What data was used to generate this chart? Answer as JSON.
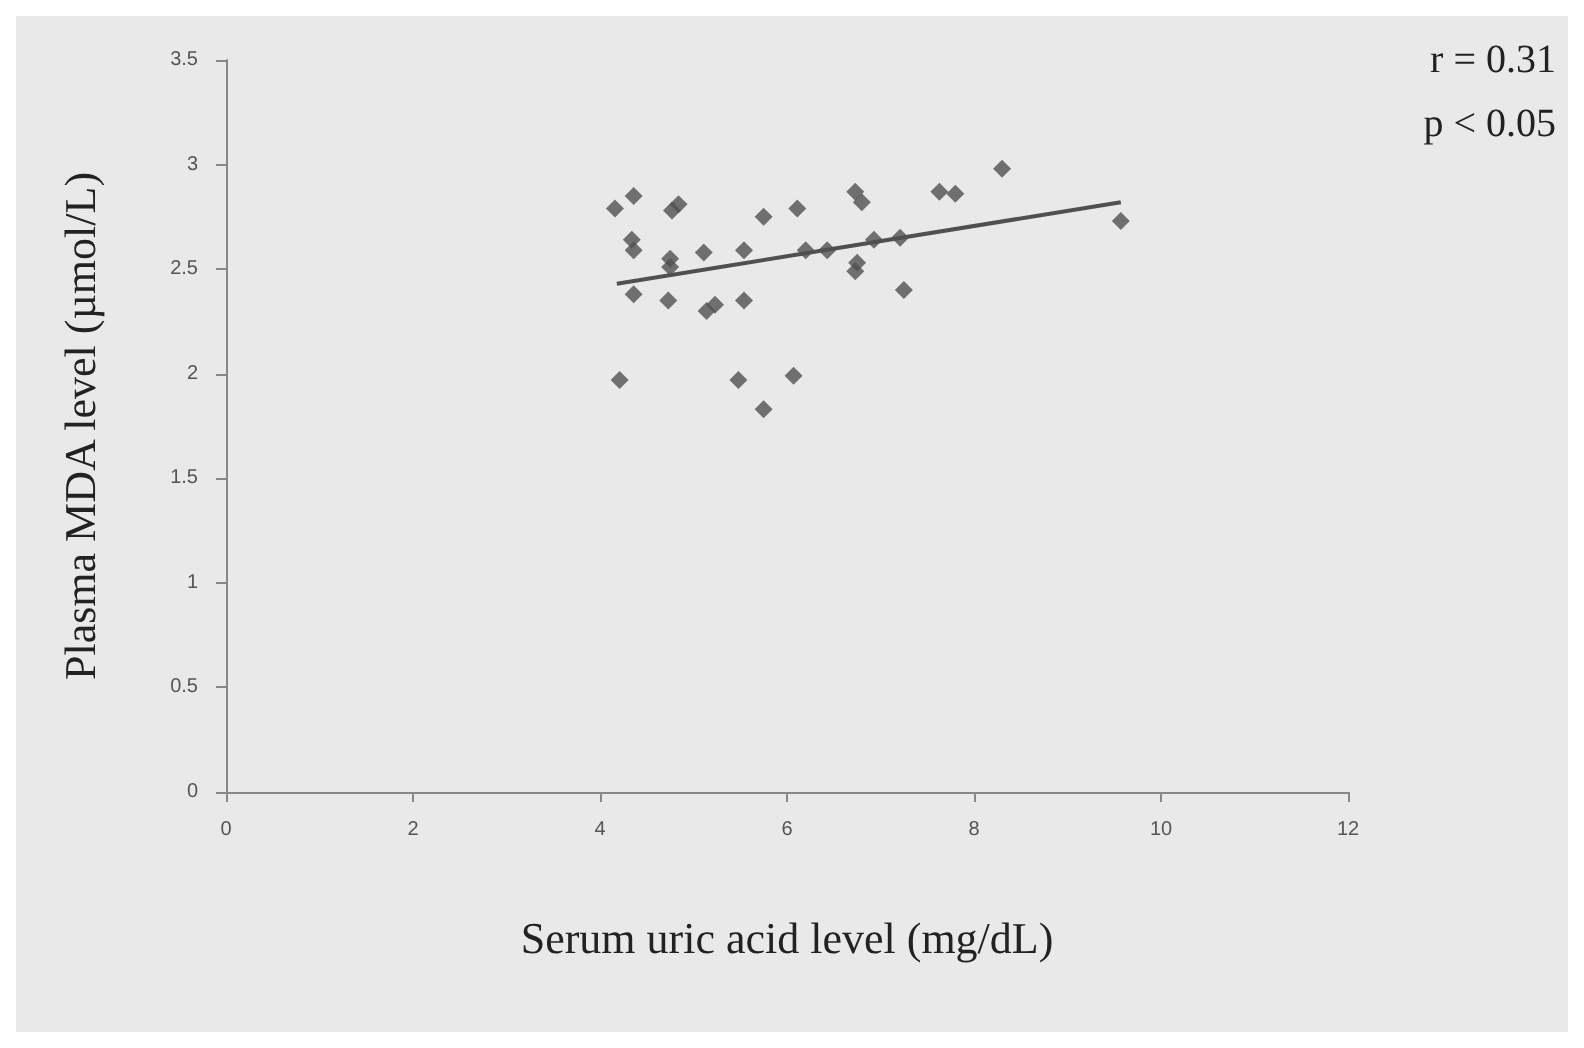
{
  "chart_data": {
    "type": "scatter",
    "xlabel": "Serum uric acid level (mg/dL)",
    "ylabel": "Plasma MDA level (µmol/L)",
    "xlim": [
      0,
      12
    ],
    "xticks": [
      0,
      2,
      4,
      6,
      8,
      10,
      12
    ],
    "ylim": [
      0,
      3.5
    ],
    "yticks": [
      0,
      0.5,
      1,
      1.5,
      2,
      2.5,
      3,
      3.5
    ],
    "grid": false,
    "marker": "diamond",
    "annotations": [
      "r = 0.31",
      "p < 0.05"
    ],
    "series": [
      {
        "color": "#505050",
        "x": [
          4.16,
          4.36,
          4.77,
          4.84,
          4.34,
          4.36,
          5.75,
          6.11,
          6.73,
          6.8,
          7.63,
          7.8,
          8.3,
          4.75,
          4.75,
          5.11,
          5.54,
          6.2,
          6.43,
          6.93,
          7.18,
          7.21,
          9.57,
          4.36,
          4.73,
          5.14,
          5.23,
          5.54,
          6.75,
          6.73,
          7.25,
          4.21,
          5.48,
          6.07,
          5.75
        ],
        "values": [
          2.79,
          2.85,
          2.78,
          2.81,
          2.64,
          2.59,
          2.75,
          2.79,
          2.87,
          2.82,
          2.87,
          2.86,
          2.98,
          2.55,
          2.51,
          2.58,
          2.59,
          2.59,
          2.59,
          2.64,
          null,
          2.65,
          2.73,
          2.38,
          2.35,
          2.3,
          2.33,
          2.35,
          2.53,
          2.49,
          2.4,
          1.97,
          1.97,
          1.99,
          1.83
        ]
      },
      {
        "type": "line",
        "color": "#505050",
        "marker": "none",
        "line_style": "solid",
        "x": [
          4.18,
          9.57
        ],
        "values": [
          2.43,
          2.82
        ]
      }
    ]
  }
}
